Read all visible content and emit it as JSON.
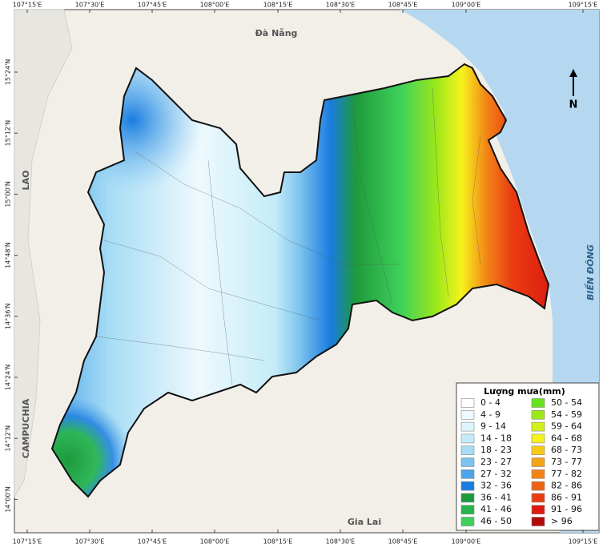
{
  "map": {
    "top_ticks": [
      "107°15'E",
      "107°30'E",
      "107°45'E",
      "108°00'E",
      "108°15'E",
      "108°30'E",
      "108°45'E",
      "109°00'E",
      "109°15'E"
    ],
    "bottom_ticks": [
      "107°15'E",
      "107°30'E",
      "107°45'E",
      "108°00'E",
      "108°15'E",
      "108°30'E",
      "108°45'E",
      "109°00'E",
      "109°15'E"
    ],
    "left_ticks": [
      "15°24'N",
      "15°12'N",
      "15°00'N",
      "14°48'N",
      "14°36'N",
      "14°24'N",
      "14°12'N",
      "14°00'N"
    ],
    "places": {
      "north": "Đà Nẵng",
      "south": "Gia Lai",
      "west": "LAO",
      "southwest": "CAMPUCHIA",
      "sea": "BIỂN ĐÔNG"
    },
    "north_arrow": "N",
    "legend": {
      "title": "Lượng mưa(mm)",
      "items": [
        {
          "label": "0 - 4",
          "color": "#ffffff"
        },
        {
          "label": "4 - 9",
          "color": "#eef9fd"
        },
        {
          "label": "9 - 14",
          "color": "#dcf4fb"
        },
        {
          "label": "14 - 18",
          "color": "#c4ecf8"
        },
        {
          "label": "18 - 23",
          "color": "#a6dcf5"
        },
        {
          "label": "23 - 27",
          "color": "#7cc3ee"
        },
        {
          "label": "27 - 32",
          "color": "#4ea4e8"
        },
        {
          "label": "32 - 36",
          "color": "#1a7be0"
        },
        {
          "label": "36 - 41",
          "color": "#1e9a3c"
        },
        {
          "label": "41 - 46",
          "color": "#25b548"
        },
        {
          "label": "46 - 50",
          "color": "#3fd15a"
        },
        {
          "label": "50 - 54",
          "color": "#66e21e"
        },
        {
          "label": "54 - 59",
          "color": "#9de81a"
        },
        {
          "label": "59 - 64",
          "color": "#d2ef1c"
        },
        {
          "label": "64 - 68",
          "color": "#f6f21d"
        },
        {
          "label": "68 - 73",
          "color": "#f6c81a"
        },
        {
          "label": "73 - 77",
          "color": "#f4a418"
        },
        {
          "label": "77 - 82",
          "color": "#f28416"
        },
        {
          "label": "82 - 86",
          "color": "#ef6314"
        },
        {
          "label": "86 - 91",
          "color": "#ea3c12"
        },
        {
          "label": "91 - 96",
          "color": "#dc1b10"
        },
        {
          "label": "> 96",
          "color": "#b20a0a"
        }
      ]
    }
  }
}
